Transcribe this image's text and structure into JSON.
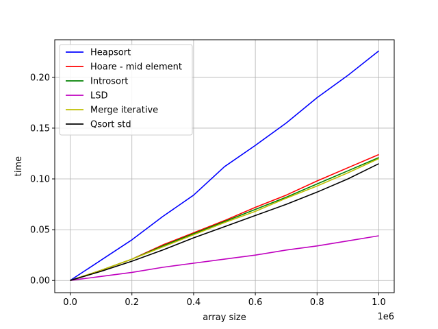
{
  "chart_data": {
    "type": "line",
    "xlabel": "array size",
    "ylabel": "time",
    "x_offset_label": "1e6",
    "xlim": [
      -0.05,
      1.05
    ],
    "ylim": [
      -0.012,
      0.237
    ],
    "x_ticks": [
      0.0,
      0.2,
      0.4,
      0.6,
      0.8,
      1.0
    ],
    "x_tick_labels": [
      "0.0",
      "0.2",
      "0.4",
      "0.6",
      "0.8",
      "1.0"
    ],
    "y_ticks": [
      0.0,
      0.05,
      0.1,
      0.15,
      0.2
    ],
    "y_tick_labels": [
      "0.00",
      "0.05",
      "0.10",
      "0.15",
      "0.20"
    ],
    "grid": true,
    "legend_position": "top-left",
    "x": [
      0.0,
      0.1,
      0.2,
      0.3,
      0.4,
      0.5,
      0.6,
      0.7,
      0.8,
      0.9,
      1.0
    ],
    "series": [
      {
        "name": "Heapsort",
        "color": "#0000ff",
        "values": [
          0.0,
          0.02,
          0.04,
          0.063,
          0.084,
          0.112,
          0.133,
          0.155,
          0.18,
          0.202,
          0.226
        ]
      },
      {
        "name": "Hoare - mid element",
        "color": "#ff0000",
        "values": [
          0.0,
          0.01,
          0.021,
          0.035,
          0.047,
          0.059,
          0.072,
          0.084,
          0.098,
          0.111,
          0.124
        ]
      },
      {
        "name": "Introsort",
        "color": "#008000",
        "values": [
          0.0,
          0.01,
          0.021,
          0.034,
          0.046,
          0.058,
          0.07,
          0.082,
          0.095,
          0.108,
          0.121
        ]
      },
      {
        "name": "LSD",
        "color": "#bf00bf",
        "values": [
          0.0,
          0.004,
          0.008,
          0.013,
          0.017,
          0.021,
          0.025,
          0.03,
          0.034,
          0.039,
          0.044
        ]
      },
      {
        "name": "Merge iterative",
        "color": "#bfbf00",
        "values": [
          0.0,
          0.01,
          0.021,
          0.033,
          0.045,
          0.057,
          0.068,
          0.081,
          0.093,
          0.106,
          0.12
        ]
      },
      {
        "name": "Qsort std",
        "color": "#000000",
        "values": [
          0.0,
          0.009,
          0.019,
          0.03,
          0.042,
          0.053,
          0.064,
          0.075,
          0.087,
          0.1,
          0.115
        ]
      }
    ]
  }
}
